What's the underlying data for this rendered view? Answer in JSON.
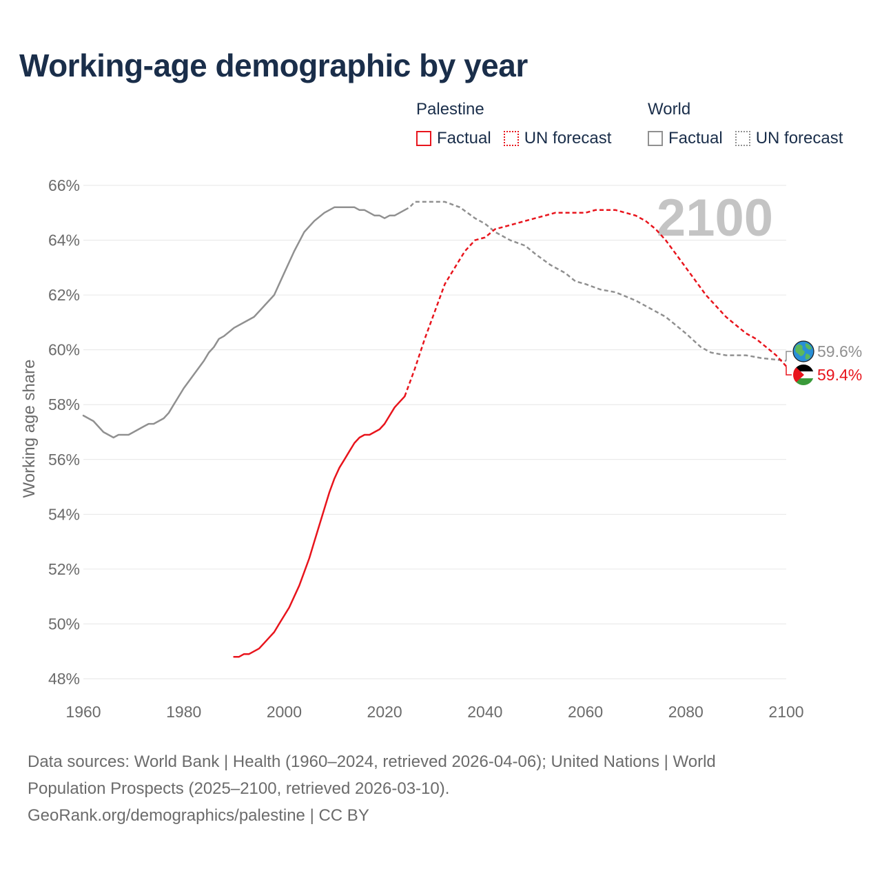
{
  "title": "Working-age demographic by year",
  "legend": {
    "groups": [
      {
        "name": "Palestine",
        "color": "#e8141c",
        "items": [
          {
            "label": "Factual",
            "style": "solid"
          },
          {
            "label": "UN forecast",
            "style": "dotted"
          }
        ]
      },
      {
        "name": "World",
        "color": "#909090",
        "items": [
          {
            "label": "Factual",
            "style": "solid"
          },
          {
            "label": "UN forecast",
            "style": "dotted"
          }
        ]
      }
    ]
  },
  "footer": {
    "line1": "Data sources: World Bank | Health (1960–2024, retrieved 2026-04-06); United Nations | World",
    "line2": "Population Prospects (2025–2100, retrieved 2026-03-10).",
    "line3": "GeoRank.org/demographics/palestine | CC BY"
  },
  "chart_data": {
    "type": "line",
    "title": "Working-age demographic by year",
    "ylabel": "Working age share",
    "xlabel": "",
    "xlim": [
      1960,
      2100
    ],
    "ylim": [
      48,
      66
    ],
    "x_ticks": [
      1960,
      1980,
      2000,
      2020,
      2040,
      2060,
      2080,
      2100
    ],
    "y_ticks": [
      48,
      50,
      52,
      54,
      56,
      58,
      60,
      62,
      64,
      66
    ],
    "y_tick_suffix": "%",
    "grid": true,
    "current_year": "2100",
    "series": [
      {
        "name": "World",
        "color": "#909090",
        "factual": {
          "x": [
            1960,
            1962,
            1964,
            1966,
            1967,
            1968,
            1969,
            1970,
            1972,
            1973,
            1974,
            1976,
            1977,
            1978,
            1980,
            1982,
            1984,
            1985,
            1986,
            1987,
            1988,
            1990,
            1992,
            1994,
            1996,
            1998,
            2000,
            2002,
            2004,
            2006,
            2008,
            2010,
            2012,
            2014,
            2015,
            2016,
            2017,
            2018,
            2019,
            2020,
            2021,
            2022,
            2023,
            2024
          ],
          "y": [
            57.6,
            57.4,
            57.0,
            56.8,
            56.9,
            56.9,
            56.9,
            57.0,
            57.2,
            57.3,
            57.3,
            57.5,
            57.7,
            58.0,
            58.6,
            59.1,
            59.6,
            59.9,
            60.1,
            60.4,
            60.5,
            60.8,
            61.0,
            61.2,
            61.6,
            62.0,
            62.8,
            63.6,
            64.3,
            64.7,
            65.0,
            65.2,
            65.2,
            65.2,
            65.1,
            65.1,
            65.0,
            64.9,
            64.9,
            64.8,
            64.9,
            64.9,
            65.0,
            65.1
          ]
        },
        "forecast": {
          "x": [
            2024,
            2025,
            2026,
            2027,
            2030,
            2032,
            2035,
            2038,
            2040,
            2042,
            2045,
            2048,
            2050,
            2053,
            2056,
            2058,
            2060,
            2063,
            2066,
            2070,
            2073,
            2076,
            2080,
            2083,
            2085,
            2088,
            2092,
            2095,
            2100
          ],
          "y": [
            65.1,
            65.2,
            65.4,
            65.4,
            65.4,
            65.4,
            65.2,
            64.8,
            64.6,
            64.3,
            64.0,
            63.8,
            63.5,
            63.1,
            62.8,
            62.5,
            62.4,
            62.2,
            62.1,
            61.8,
            61.5,
            61.2,
            60.6,
            60.1,
            59.9,
            59.8,
            59.8,
            59.7,
            59.6
          ]
        },
        "end_label": "59.6%"
      },
      {
        "name": "Palestine",
        "color": "#e8141c",
        "factual": {
          "x": [
            1990,
            1991,
            1992,
            1993,
            1994,
            1995,
            1996,
            1997,
            1998,
            1999,
            2000,
            2001,
            2002,
            2003,
            2004,
            2005,
            2006,
            2007,
            2008,
            2009,
            2010,
            2011,
            2012,
            2013,
            2014,
            2015,
            2016,
            2017,
            2018,
            2019,
            2020,
            2021,
            2022,
            2023,
            2024
          ],
          "y": [
            48.8,
            48.8,
            48.9,
            48.9,
            49.0,
            49.1,
            49.3,
            49.5,
            49.7,
            50.0,
            50.3,
            50.6,
            51.0,
            51.4,
            51.9,
            52.4,
            53.0,
            53.6,
            54.2,
            54.8,
            55.3,
            55.7,
            56.0,
            56.3,
            56.6,
            56.8,
            56.9,
            56.9,
            57.0,
            57.1,
            57.3,
            57.6,
            57.9,
            58.1,
            58.3
          ]
        },
        "forecast": {
          "x": [
            2024,
            2026,
            2028,
            2030,
            2032,
            2034,
            2036,
            2038,
            2040,
            2042,
            2044,
            2046,
            2048,
            2050,
            2052,
            2054,
            2056,
            2058,
            2060,
            2062,
            2064,
            2066,
            2068,
            2070,
            2072,
            2074,
            2076,
            2078,
            2080,
            2082,
            2084,
            2086,
            2088,
            2090,
            2092,
            2094,
            2096,
            2098,
            2100
          ],
          "y": [
            58.3,
            59.3,
            60.4,
            61.4,
            62.4,
            63.0,
            63.6,
            64.0,
            64.1,
            64.4,
            64.5,
            64.6,
            64.7,
            64.8,
            64.9,
            65.0,
            65.0,
            65.0,
            65.0,
            65.1,
            65.1,
            65.1,
            65.0,
            64.9,
            64.7,
            64.4,
            64.0,
            63.5,
            63.0,
            62.5,
            62.0,
            61.6,
            61.2,
            60.9,
            60.6,
            60.4,
            60.1,
            59.8,
            59.4
          ]
        },
        "end_label": "59.4%"
      }
    ]
  }
}
